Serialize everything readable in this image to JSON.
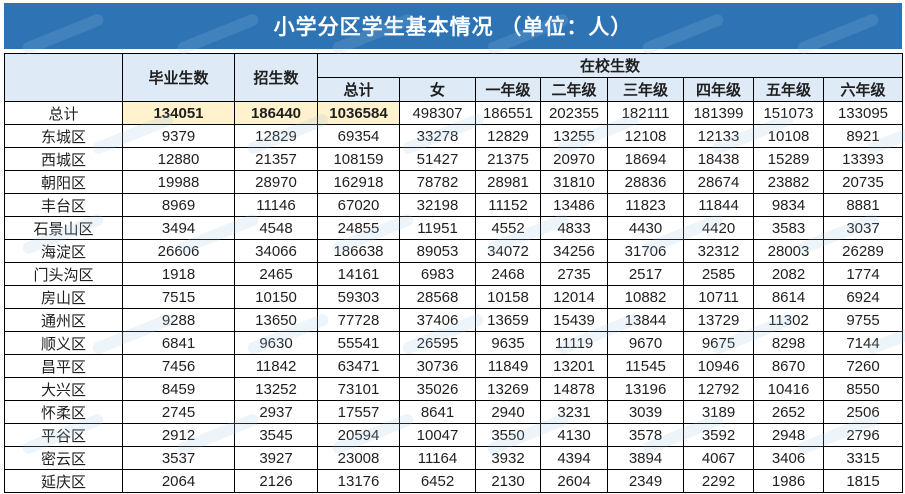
{
  "colors": {
    "title_bar_bg": "#2E74B5",
    "title_text": "#FFFFFF",
    "header_bg": "#DEEAF6",
    "highlight_bg": "#FFF2CC",
    "border": "#000000",
    "text": "#1F1F1F",
    "watermark": "#9DC3E6"
  },
  "chart_data": {
    "type": "table",
    "title": "小学分区学生基本情况 （单位：人）",
    "header": {
      "corner": "",
      "standalone_columns": [
        "毕业生数",
        "招生数"
      ],
      "group_label": "在校生数",
      "group_columns": [
        "总计",
        "女",
        "一年级",
        "二年级",
        "三年级",
        "四年级",
        "五年级",
        "六年级"
      ]
    },
    "rows": [
      {
        "label": "总计",
        "values": [
          134051,
          186440,
          1036584,
          498307,
          186551,
          202355,
          182111,
          181399,
          151073,
          133095
        ],
        "highlight": [
          0,
          1,
          2
        ]
      },
      {
        "label": "东城区",
        "values": [
          9379,
          12829,
          69354,
          33278,
          12829,
          13255,
          12108,
          12133,
          10108,
          8921
        ]
      },
      {
        "label": "西城区",
        "values": [
          12880,
          21357,
          108159,
          51427,
          21375,
          20970,
          18694,
          18438,
          15289,
          13393
        ]
      },
      {
        "label": "朝阳区",
        "values": [
          19988,
          28970,
          162918,
          78782,
          28981,
          31810,
          28836,
          28674,
          23882,
          20735
        ]
      },
      {
        "label": "丰台区",
        "values": [
          8969,
          11146,
          67020,
          32198,
          11152,
          13486,
          11823,
          11844,
          9834,
          8881
        ]
      },
      {
        "label": "石景山区",
        "values": [
          3494,
          4548,
          24855,
          11951,
          4552,
          4833,
          4430,
          4420,
          3583,
          3037
        ]
      },
      {
        "label": "海淀区",
        "values": [
          26606,
          34066,
          186638,
          89053,
          34072,
          34256,
          31706,
          32312,
          28003,
          26289
        ]
      },
      {
        "label": "门头沟区",
        "values": [
          1918,
          2465,
          14161,
          6983,
          2468,
          2735,
          2517,
          2585,
          2082,
          1774
        ]
      },
      {
        "label": "房山区",
        "values": [
          7515,
          10150,
          59303,
          28568,
          10158,
          12014,
          10882,
          10711,
          8614,
          6924
        ]
      },
      {
        "label": "通州区",
        "values": [
          9288,
          13650,
          77728,
          37406,
          13659,
          15439,
          13844,
          13729,
          11302,
          9755
        ]
      },
      {
        "label": "顺义区",
        "values": [
          6841,
          9630,
          55541,
          26595,
          9635,
          11119,
          9670,
          9675,
          8298,
          7144
        ]
      },
      {
        "label": "昌平区",
        "values": [
          7456,
          11842,
          63471,
          30736,
          11849,
          13201,
          11545,
          10946,
          8670,
          7260
        ]
      },
      {
        "label": "大兴区",
        "values": [
          8459,
          13252,
          73101,
          35026,
          13269,
          14878,
          13196,
          12792,
          10416,
          8550
        ]
      },
      {
        "label": "怀柔区",
        "values": [
          2745,
          2937,
          17557,
          8641,
          2940,
          3231,
          3039,
          3189,
          2652,
          2506
        ]
      },
      {
        "label": "平谷区",
        "values": [
          2912,
          3545,
          20594,
          10047,
          3550,
          4130,
          3578,
          3592,
          2948,
          2796
        ]
      },
      {
        "label": "密云区",
        "values": [
          3537,
          3927,
          23008,
          11164,
          3932,
          4394,
          3894,
          4067,
          3406,
          3315
        ]
      },
      {
        "label": "延庆区",
        "values": [
          2064,
          2126,
          13176,
          6452,
          2130,
          2604,
          2349,
          2292,
          1986,
          1815
        ]
      }
    ]
  }
}
